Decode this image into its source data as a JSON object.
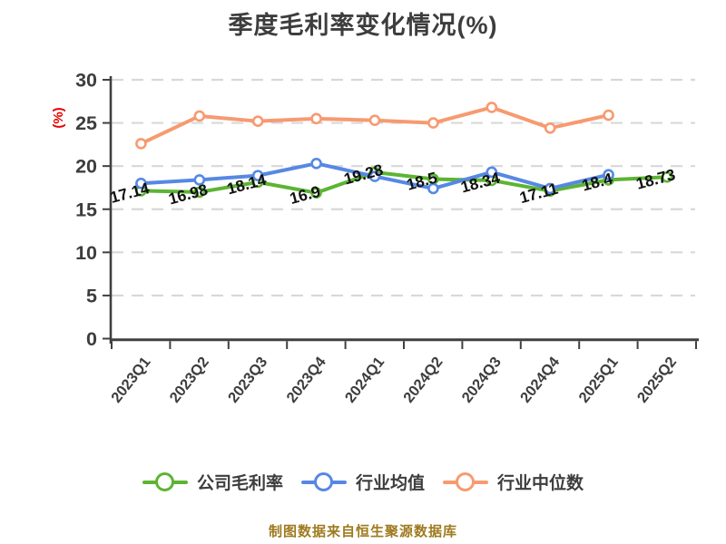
{
  "source_note": "制图数据来自恒生聚源数据库",
  "colors": {
    "title": "#3d3d3d",
    "axis": "#404040",
    "grid": "#d8d8d8",
    "tick_label": "#3d3d3d",
    "data_label": "#111111",
    "ylabel": "#e60000",
    "source_note": "#9e7a1e",
    "series_green": "#5cb433",
    "series_blue": "#5688e4",
    "series_orange": "#f79a70"
  },
  "chart_data": {
    "type": "line",
    "title": "季度毛利率变化情况(%)",
    "ylabel": "(%)",
    "xlabel": "",
    "categories": [
      "2023Q1",
      "2023Q2",
      "2023Q3",
      "2023Q4",
      "2024Q1",
      "2024Q2",
      "2024Q3",
      "2024Q4",
      "2025Q1",
      "2025Q2"
    ],
    "ylim": [
      0,
      30
    ],
    "yticks": [
      0,
      5,
      10,
      15,
      20,
      25,
      30
    ],
    "grid": "horizontal-dashed",
    "legend_position": "bottom",
    "series": [
      {
        "name": "公司毛利率",
        "color": "#5cb433",
        "marker": "circle-white-fill",
        "show_point_labels": true,
        "values": [
          17.14,
          16.98,
          18.14,
          16.9,
          19.28,
          18.5,
          18.34,
          17.11,
          18.4,
          18.73
        ]
      },
      {
        "name": "行业均值",
        "color": "#5688e4",
        "marker": "circle-white-fill",
        "show_point_labels": false,
        "values_estimated": true,
        "values": [
          18.0,
          18.4,
          18.9,
          20.3,
          18.8,
          17.4,
          19.3,
          17.4,
          19.0
        ]
      },
      {
        "name": "行业中位数",
        "color": "#f79a70",
        "marker": "circle-white-fill",
        "show_point_labels": false,
        "values_estimated": true,
        "values": [
          22.6,
          25.8,
          25.2,
          25.5,
          25.3,
          25.0,
          26.8,
          24.4,
          25.9
        ]
      }
    ]
  }
}
